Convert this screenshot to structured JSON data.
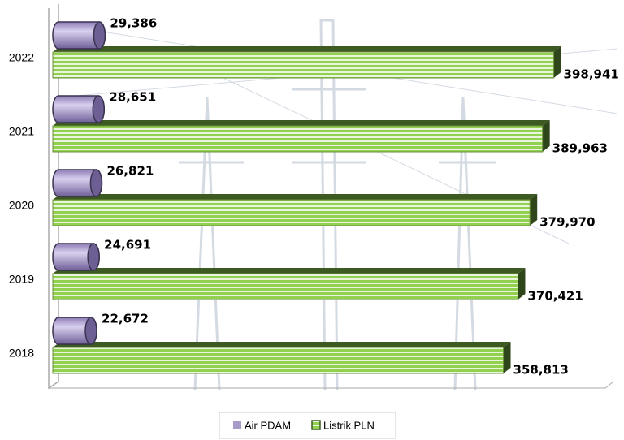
{
  "chart_data": {
    "type": "bar3d",
    "categories": [
      "2018",
      "2019",
      "2020",
      "2021",
      "2022"
    ],
    "series": [
      {
        "name": "Air PDAM",
        "color": "#a99bc9",
        "values": [
          22672,
          24691,
          26821,
          28651,
          29386
        ],
        "value_labels": [
          "22,672",
          "24,691",
          "26,821",
          "28,651",
          "29,386"
        ]
      },
      {
        "name": "Listrik PLN",
        "color": "#92d050",
        "values": [
          358813,
          370421,
          379970,
          389963,
          398941
        ],
        "value_labels": [
          "358,813",
          "370,421",
          "379,970",
          "389,963",
          "398,941"
        ]
      }
    ],
    "xlim": [
      0,
      440000
    ]
  }
}
